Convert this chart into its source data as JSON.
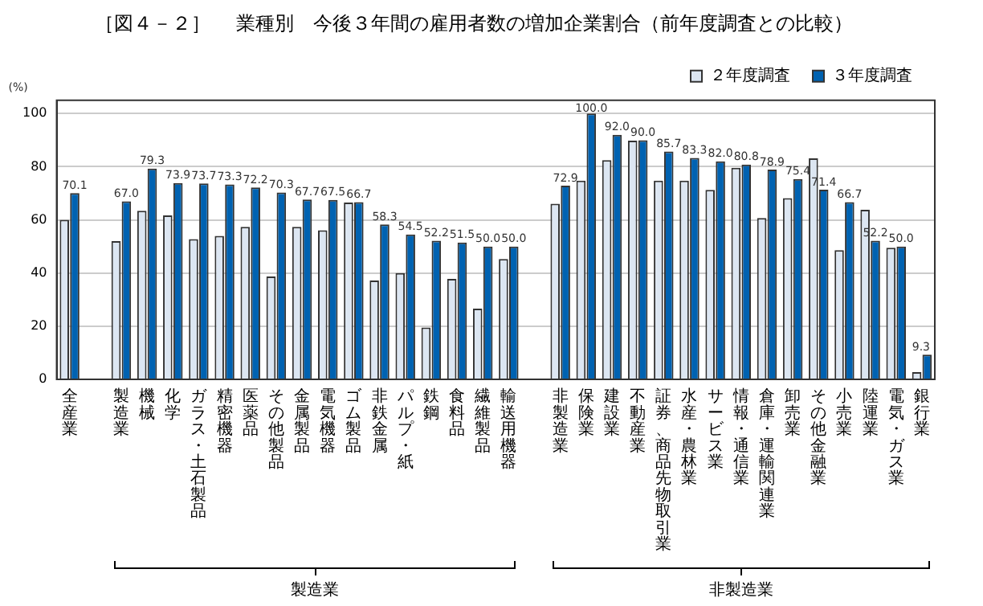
{
  "chart_data": {
    "type": "bar",
    "title": "［図４－２］　 業種別　今後３年間の雇用者数の増加企業割合（前年度調査との比較）",
    "ylabel": "(%)",
    "categories": [
      "全産業",
      null,
      "製造業",
      "機械",
      "化学",
      "ガラス・土石製品",
      "精密機器",
      "医薬品",
      "その他製品",
      "金属製品",
      "電気機器",
      "ゴム製品",
      "非鉄金属",
      "パルプ・紙",
      "鉄鋼",
      "食料品",
      "繊維製品",
      "輸送用機器",
      null,
      "非製造業",
      "保険業",
      "建設業",
      "不動産業",
      "証券、商品先物取引業",
      "水産・農林業",
      "サービス業",
      "情報・通信業",
      "倉庫・運輸関連業",
      "卸売業",
      "その他金融業",
      "小売業",
      "陸運業",
      "電気・ガス業",
      "銀行業"
    ],
    "series": [
      {
        "name": "２年度調査",
        "color": "#dce6f2",
        "values": [
          60,
          null,
          52,
          63.4,
          61.7,
          52.8,
          54,
          57.4,
          38.7,
          57.4,
          56.1,
          66.5,
          37.2,
          40,
          19.5,
          37.8,
          26.6,
          45.3,
          null,
          66.1,
          74.8,
          82.5,
          89.8,
          74.8,
          74.8,
          71.3,
          79.6,
          60.7,
          68.2,
          83.2,
          48.6,
          63.8,
          49.5,
          2.7
        ]
      },
      {
        "name": "３年度調査",
        "color": "#0062b1",
        "values": [
          70.1,
          null,
          67.0,
          79.3,
          73.9,
          73.7,
          73.3,
          72.2,
          70.3,
          67.7,
          67.5,
          66.7,
          58.3,
          54.5,
          52.2,
          51.5,
          50.0,
          50.0,
          null,
          72.9,
          100.0,
          92.0,
          90.0,
          85.7,
          83.3,
          82.0,
          80.8,
          78.9,
          75.4,
          71.4,
          66.7,
          52.2,
          50.0,
          9.3
        ],
        "value_labels": [
          "70.1",
          null,
          "67.0",
          "79.3",
          "73.9",
          "73.7",
          "73.3",
          "72.2",
          "70.3",
          "67.7",
          "67.5",
          "66.7",
          "58.3",
          "54.5",
          "52.2",
          "51.5",
          "50.0",
          "50.0",
          null,
          "72.9",
          "100.0",
          "92.0",
          "90.0",
          "85.7",
          "83.3",
          "82.0",
          "80.8",
          "78.9",
          "75.4",
          "71.4",
          "66.7",
          "52.2",
          "50.0",
          "9.3"
        ]
      }
    ],
    "ylim": [
      0,
      105
    ],
    "yticks": [
      0,
      20,
      40,
      60,
      80,
      100
    ],
    "grid": "y",
    "legend": "top right",
    "annotations": [
      "製造業",
      "非製造業"
    ]
  }
}
